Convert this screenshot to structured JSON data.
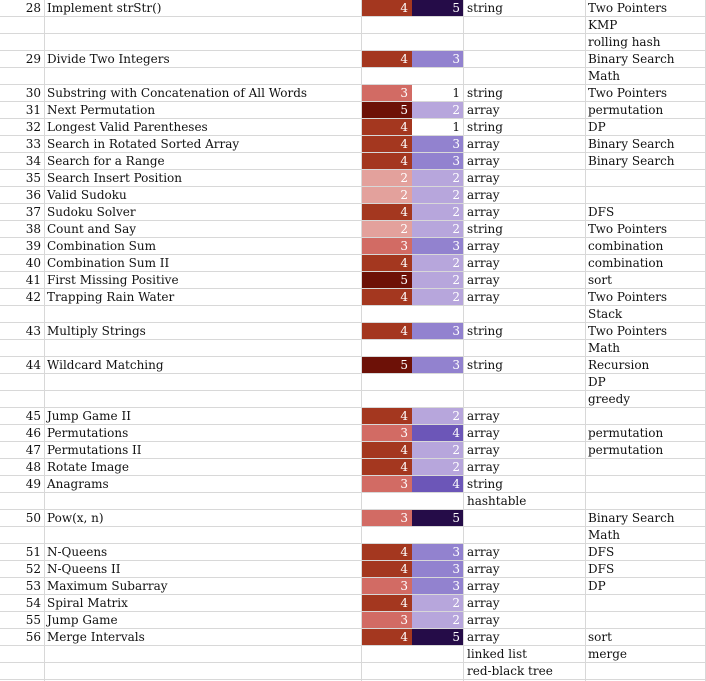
{
  "colors": {
    "difficulty": {
      "2": "#e3a19c",
      "3": "#d26b64",
      "4": "#a4371f",
      "5": "#6d1107"
    },
    "frequency": {
      "1": "#ffffff",
      "2": "#b7a6dc",
      "3": "#9282cf",
      "4": "#6c56b8",
      "5": "#250c48"
    }
  },
  "rows": [
    {
      "num": "28",
      "title": "Implement strStr()",
      "difficulty": "4",
      "frequency": "5",
      "ds": "string",
      "tag": "Two Pointers"
    },
    {
      "num": "",
      "title": "",
      "difficulty": "",
      "frequency": "",
      "ds": "",
      "tag": "KMP"
    },
    {
      "num": "",
      "title": "",
      "difficulty": "",
      "frequency": "",
      "ds": "",
      "tag": "rolling hash"
    },
    {
      "num": "29",
      "title": "Divide Two Integers",
      "difficulty": "4",
      "frequency": "3",
      "ds": "",
      "tag": "Binary Search"
    },
    {
      "num": "",
      "title": "",
      "difficulty": "",
      "frequency": "",
      "ds": "",
      "tag": "Math"
    },
    {
      "num": "30",
      "title": "Substring with Concatenation of All Words",
      "difficulty": "3",
      "frequency": "1",
      "ds": "string",
      "tag": "Two Pointers"
    },
    {
      "num": "31",
      "title": "Next Permutation",
      "difficulty": "5",
      "frequency": "2",
      "ds": "array",
      "tag": "permutation"
    },
    {
      "num": "32",
      "title": "Longest Valid Parentheses",
      "difficulty": "4",
      "frequency": "1",
      "ds": "string",
      "tag": "DP"
    },
    {
      "num": "33",
      "title": "Search in Rotated Sorted Array",
      "difficulty": "4",
      "frequency": "3",
      "ds": "array",
      "tag": "Binary Search"
    },
    {
      "num": "34",
      "title": "Search for a Range",
      "difficulty": "4",
      "frequency": "3",
      "ds": "array",
      "tag": "Binary Search"
    },
    {
      "num": "35",
      "title": "Search Insert Position",
      "difficulty": "2",
      "frequency": "2",
      "ds": "array",
      "tag": ""
    },
    {
      "num": "36",
      "title": "Valid Sudoku",
      "difficulty": "2",
      "frequency": "2",
      "ds": "array",
      "tag": ""
    },
    {
      "num": "37",
      "title": "Sudoku Solver",
      "difficulty": "4",
      "frequency": "2",
      "ds": "array",
      "tag": "DFS"
    },
    {
      "num": "38",
      "title": "Count and Say",
      "difficulty": "2",
      "frequency": "2",
      "ds": "string",
      "tag": "Two Pointers"
    },
    {
      "num": "39",
      "title": "Combination Sum",
      "difficulty": "3",
      "frequency": "3",
      "ds": "array",
      "tag": "combination"
    },
    {
      "num": "40",
      "title": "Combination Sum II",
      "difficulty": "4",
      "frequency": "2",
      "ds": "array",
      "tag": "combination"
    },
    {
      "num": "41",
      "title": "First Missing Positive",
      "difficulty": "5",
      "frequency": "2",
      "ds": "array",
      "tag": "sort"
    },
    {
      "num": "42",
      "title": "Trapping Rain Water",
      "difficulty": "4",
      "frequency": "2",
      "ds": "array",
      "tag": "Two Pointers"
    },
    {
      "num": "",
      "title": "",
      "difficulty": "",
      "frequency": "",
      "ds": "",
      "tag": "Stack"
    },
    {
      "num": "43",
      "title": "Multiply Strings",
      "difficulty": "4",
      "frequency": "3",
      "ds": "string",
      "tag": "Two Pointers"
    },
    {
      "num": "",
      "title": "",
      "difficulty": "",
      "frequency": "",
      "ds": "",
      "tag": "Math"
    },
    {
      "num": "44",
      "title": "Wildcard Matching",
      "difficulty": "5",
      "frequency": "3",
      "ds": "string",
      "tag": "Recursion"
    },
    {
      "num": "",
      "title": "",
      "difficulty": "",
      "frequency": "",
      "ds": "",
      "tag": "DP"
    },
    {
      "num": "",
      "title": "",
      "difficulty": "",
      "frequency": "",
      "ds": "",
      "tag": "greedy"
    },
    {
      "num": "45",
      "title": "Jump Game II",
      "difficulty": "4",
      "frequency": "2",
      "ds": "array",
      "tag": ""
    },
    {
      "num": "46",
      "title": "Permutations",
      "difficulty": "3",
      "frequency": "4",
      "ds": "array",
      "tag": "permutation"
    },
    {
      "num": "47",
      "title": "Permutations II",
      "difficulty": "4",
      "frequency": "2",
      "ds": "array",
      "tag": "permutation"
    },
    {
      "num": "48",
      "title": "Rotate Image",
      "difficulty": "4",
      "frequency": "2",
      "ds": "array",
      "tag": ""
    },
    {
      "num": "49",
      "title": "Anagrams",
      "difficulty": "3",
      "frequency": "4",
      "ds": "string",
      "tag": ""
    },
    {
      "num": "",
      "title": "",
      "difficulty": "",
      "frequency": "",
      "ds": "hashtable",
      "tag": ""
    },
    {
      "num": "50",
      "title": "Pow(x, n)",
      "difficulty": "3",
      "frequency": "5",
      "ds": "",
      "tag": "Binary Search"
    },
    {
      "num": "",
      "title": "",
      "difficulty": "",
      "frequency": "",
      "ds": "",
      "tag": "Math"
    },
    {
      "num": "51",
      "title": "N-Queens",
      "difficulty": "4",
      "frequency": "3",
      "ds": "array",
      "tag": "DFS"
    },
    {
      "num": "52",
      "title": "N-Queens II",
      "difficulty": "4",
      "frequency": "3",
      "ds": "array",
      "tag": "DFS"
    },
    {
      "num": "53",
      "title": "Maximum Subarray",
      "difficulty": "3",
      "frequency": "3",
      "ds": "array",
      "tag": "DP"
    },
    {
      "num": "54",
      "title": "Spiral Matrix",
      "difficulty": "4",
      "frequency": "2",
      "ds": "array",
      "tag": ""
    },
    {
      "num": "55",
      "title": "Jump Game",
      "difficulty": "3",
      "frequency": "2",
      "ds": "array",
      "tag": ""
    },
    {
      "num": "56",
      "title": "Merge Intervals",
      "difficulty": "4",
      "frequency": "5",
      "ds": "array",
      "tag": "sort"
    },
    {
      "num": "",
      "title": "",
      "difficulty": "",
      "frequency": "",
      "ds": "linked list",
      "tag": "merge"
    },
    {
      "num": "",
      "title": "",
      "difficulty": "",
      "frequency": "",
      "ds": "red-black tree",
      "tag": ""
    }
  ]
}
